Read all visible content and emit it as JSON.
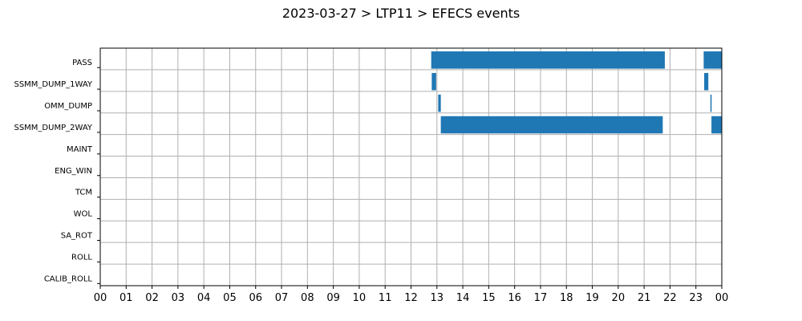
{
  "chart_data": {
    "type": "bar",
    "orientation": "horizontal-timeline",
    "title": "2023-03-27 > LTP11 > EFECS events",
    "xlabel": "",
    "ylabel": "",
    "xlim": [
      0,
      24
    ],
    "x_tick_labels": [
      "00",
      "01",
      "02",
      "03",
      "04",
      "05",
      "06",
      "07",
      "08",
      "09",
      "10",
      "11",
      "12",
      "13",
      "14",
      "15",
      "16",
      "17",
      "18",
      "19",
      "20",
      "21",
      "22",
      "23",
      "00"
    ],
    "categories": [
      "PASS",
      "SSMM_DUMP_1WAY",
      "OMM_DUMP",
      "SSMM_DUMP_2WAY",
      "MAINT",
      "ENG_WIN",
      "TCM",
      "WOL",
      "SA_ROT",
      "ROLL",
      "CALIB_ROLL"
    ],
    "grid": true,
    "bar_color": "#1f77b4",
    "events": [
      {
        "category": "PASS",
        "start": 12.78,
        "end": 21.8
      },
      {
        "category": "PASS",
        "start": 23.3,
        "end": 24.0
      },
      {
        "category": "SSMM_DUMP_1WAY",
        "start": 12.8,
        "end": 12.97
      },
      {
        "category": "SSMM_DUMP_1WAY",
        "start": 23.32,
        "end": 23.48
      },
      {
        "category": "OMM_DUMP",
        "start": 13.05,
        "end": 13.15
      },
      {
        "category": "OMM_DUMP",
        "start": 23.56,
        "end": 23.6
      },
      {
        "category": "SSMM_DUMP_2WAY",
        "start": 13.15,
        "end": 21.72
      },
      {
        "category": "SSMM_DUMP_2WAY",
        "start": 23.6,
        "end": 24.0
      }
    ]
  }
}
